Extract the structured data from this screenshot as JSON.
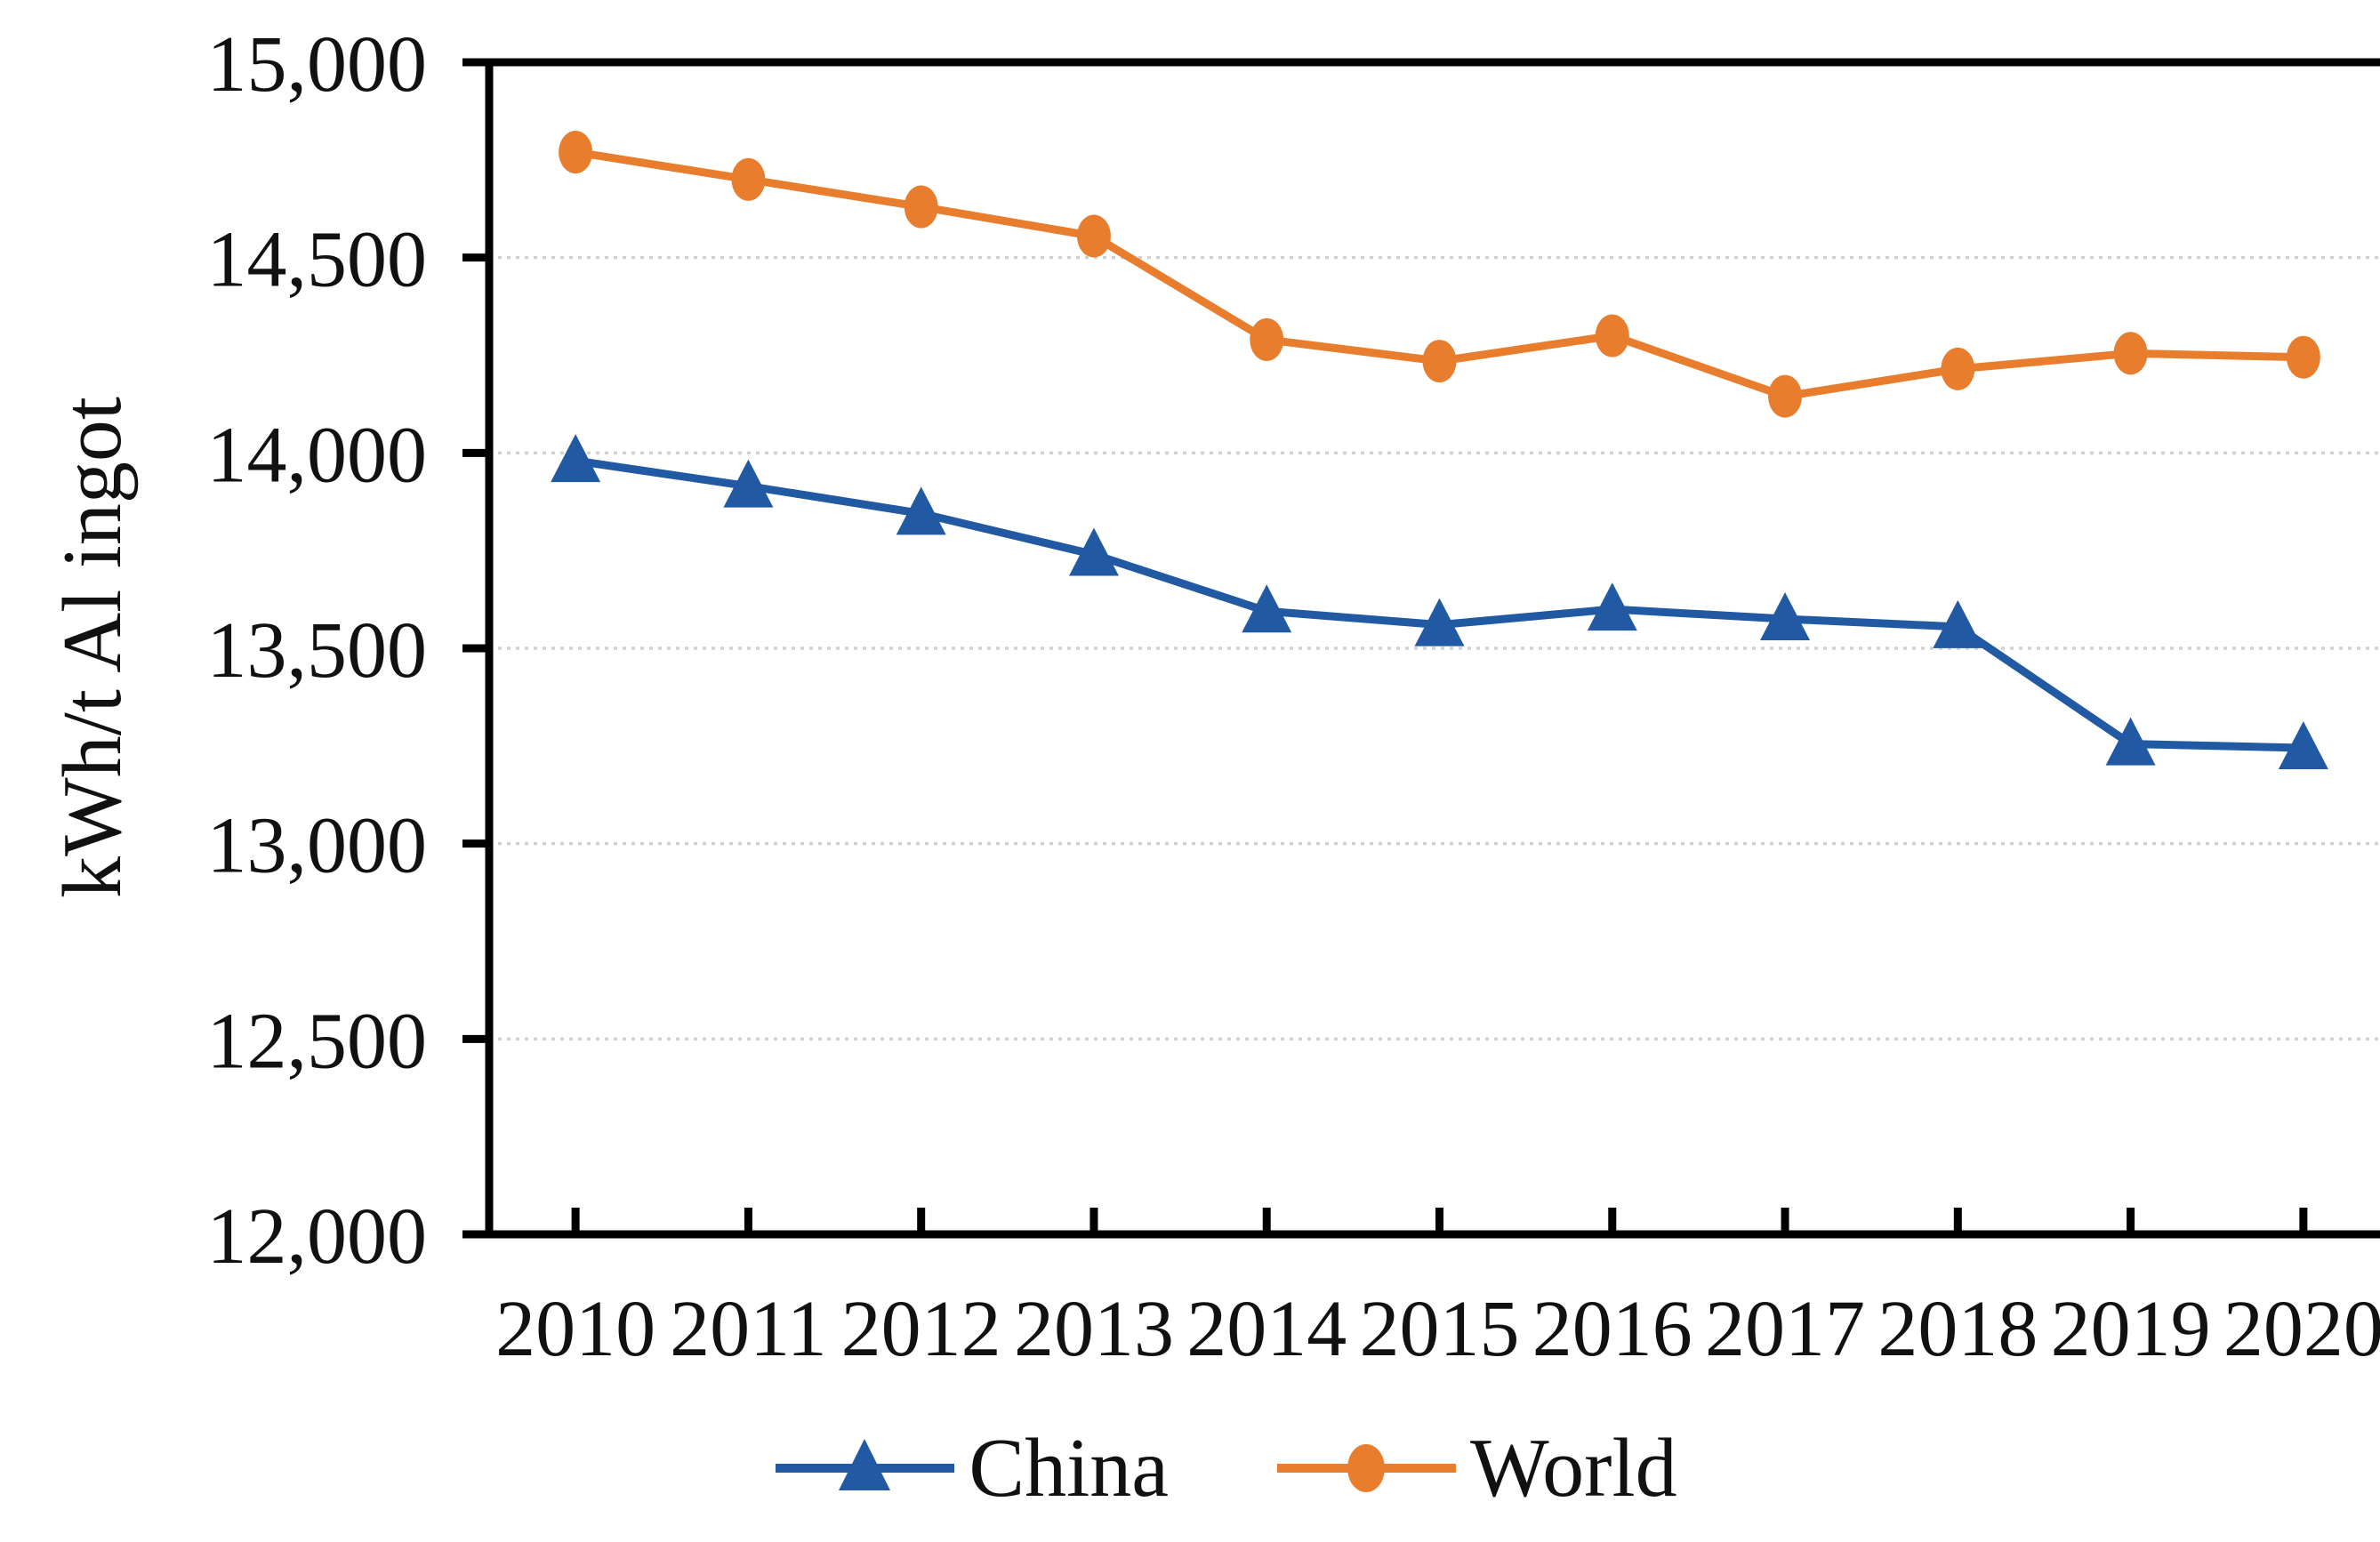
{
  "figure": {
    "background": "#ffffff",
    "axis_color": "#000000",
    "grid_color": "#d2d2d2"
  },
  "chart_data": {
    "type": "line",
    "title": "",
    "ylabel": "kWh/t Al ingot",
    "xlabel": "",
    "x": [
      "2010",
      "2011",
      "2012",
      "2013",
      "2014",
      "2015",
      "2016",
      "2017",
      "2018",
      "2019",
      "2020"
    ],
    "ylim": [
      12000,
      15000
    ],
    "y_tick_step": 500,
    "y_ticks": [
      {
        "value": 12000,
        "label": "12,000"
      },
      {
        "value": 12500,
        "label": "12,500"
      },
      {
        "value": 13000,
        "label": "13,000"
      },
      {
        "value": 13500,
        "label": "13,500"
      },
      {
        "value": 14000,
        "label": "14,000"
      },
      {
        "value": 14500,
        "label": "14,500"
      },
      {
        "value": 15000,
        "label": "15,000"
      }
    ],
    "grid": "horizontal-dotted",
    "legend_position": "bottom",
    "series": [
      {
        "name": "China",
        "color": "#2159A3",
        "marker": "triangle",
        "values": [
          13980,
          13915,
          13845,
          13740,
          13595,
          13560,
          13600,
          13575,
          13555,
          13255,
          13245
        ]
      },
      {
        "name": "World",
        "color": "#E87E2D",
        "marker": "circle",
        "values": [
          14770,
          14700,
          14630,
          14555,
          14290,
          14235,
          14300,
          14145,
          14215,
          14255,
          14245
        ]
      }
    ]
  }
}
